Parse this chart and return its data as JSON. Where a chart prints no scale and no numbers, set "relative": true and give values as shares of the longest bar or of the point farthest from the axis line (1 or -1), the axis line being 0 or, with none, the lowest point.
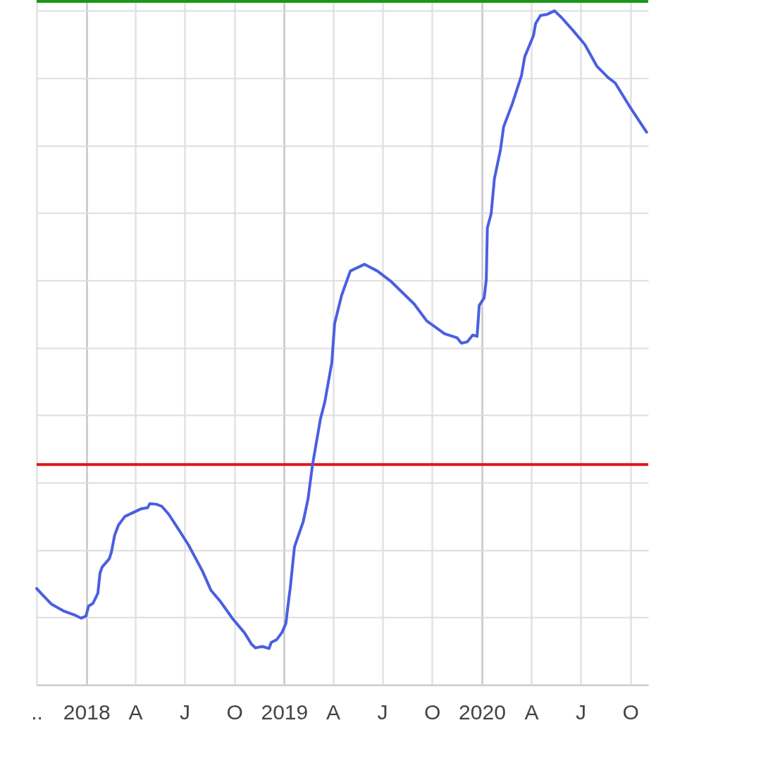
{
  "chart_data": {
    "type": "line",
    "relative": true,
    "x": [
      "2017-10-01",
      "2017-10-09",
      "2017-10-28",
      "2017-11-19",
      "2017-12-12",
      "2017-12-22",
      "2017-12-31",
      "2018-01-05",
      "2018-01-13",
      "2018-01-22",
      "2018-01-26",
      "2018-01-30",
      "2018-02-12",
      "2018-02-16",
      "2018-02-22",
      "2018-03-01",
      "2018-03-13",
      "2018-03-29",
      "2018-04-11",
      "2018-04-24",
      "2018-04-28",
      "2018-05-10",
      "2018-05-20",
      "2018-06-02",
      "2018-06-19",
      "2018-07-08",
      "2018-08-03",
      "2018-08-19",
      "2018-09-05",
      "2018-09-28",
      "2018-10-20",
      "2018-11-02",
      "2018-11-09",
      "2018-11-22",
      "2018-12-04",
      "2018-12-08",
      "2018-12-18",
      "2018-12-28",
      "2019-01-04",
      "2019-01-10",
      "2019-01-12",
      "2019-01-20",
      "2019-02-05",
      "2019-02-14",
      "2019-02-22",
      "2019-03-01",
      "2019-03-09",
      "2019-03-17",
      "2019-03-30",
      "2019-04-04",
      "2019-04-17",
      "2019-05-03",
      "2019-05-29",
      "2019-06-22",
      "2019-07-18",
      "2019-08-29",
      "2019-09-21",
      "2019-10-24",
      "2019-11-16",
      "2019-11-24",
      "2019-12-05",
      "2019-12-15",
      "2019-12-23",
      "2019-12-27",
      "2020-01-05",
      "2020-01-09",
      "2020-01-11",
      "2020-01-18",
      "2020-01-24",
      "2020-02-04",
      "2020-02-10",
      "2020-02-26",
      "2020-03-14",
      "2020-03-20",
      "2020-04-05",
      "2020-04-09",
      "2020-04-18",
      "2020-05-01",
      "2020-05-14",
      "2020-05-27",
      "2020-06-17",
      "2020-07-09",
      "2020-07-31",
      "2020-08-21",
      "2020-09-03",
      "2020-09-29",
      "2020-10-31"
    ],
    "series": [
      {
        "color": "#4a5fe0",
        "values": [
          0.143,
          0.136,
          0.12,
          0.11,
          0.103,
          0.099,
          0.102,
          0.117,
          0.121,
          0.136,
          0.166,
          0.175,
          0.187,
          0.197,
          0.222,
          0.237,
          0.25,
          0.256,
          0.261,
          0.263,
          0.269,
          0.268,
          0.265,
          0.253,
          0.232,
          0.208,
          0.169,
          0.14,
          0.124,
          0.098,
          0.077,
          0.06,
          0.055,
          0.057,
          0.054,
          0.063,
          0.067,
          0.078,
          0.091,
          0.131,
          0.143,
          0.205,
          0.242,
          0.276,
          0.325,
          0.358,
          0.395,
          0.42,
          0.479,
          0.536,
          0.578,
          0.614,
          0.624,
          0.614,
          0.598,
          0.565,
          0.54,
          0.521,
          0.515,
          0.507,
          0.509,
          0.519,
          0.517,
          0.563,
          0.574,
          0.601,
          0.678,
          0.699,
          0.751,
          0.793,
          0.828,
          0.862,
          0.904,
          0.932,
          0.963,
          0.981,
          0.993,
          0.995,
          1,
          0.99,
          0.971,
          0.95,
          0.918,
          0.901,
          0.893,
          0.859,
          0.82
        ]
      }
    ],
    "xlim": [
      "2017-10-01",
      "2020-11-03"
    ],
    "xticks": [
      {
        "value": "2017-10-01",
        "label": ".."
      },
      {
        "value": "2018-01-01",
        "label": "2018"
      },
      {
        "value": "2018-04-01",
        "label": "A"
      },
      {
        "value": "2018-07-01",
        "label": "J"
      },
      {
        "value": "2018-10-01",
        "label": "O"
      },
      {
        "value": "2019-01-01",
        "label": "2019"
      },
      {
        "value": "2019-04-01",
        "label": "A"
      },
      {
        "value": "2019-07-01",
        "label": "J"
      },
      {
        "value": "2019-10-01",
        "label": "O"
      },
      {
        "value": "2020-01-01",
        "label": "2020"
      },
      {
        "value": "2020-04-01",
        "label": "A"
      },
      {
        "value": "2020-07-01",
        "label": "J"
      },
      {
        "value": "2020-10-01",
        "label": "O"
      }
    ],
    "ref_lines": [
      {
        "axis": "y",
        "value": 1.014,
        "color": "#1a961a"
      },
      {
        "axis": "y",
        "value": 0.327,
        "color": "#e0151b"
      }
    ],
    "grid": true
  }
}
